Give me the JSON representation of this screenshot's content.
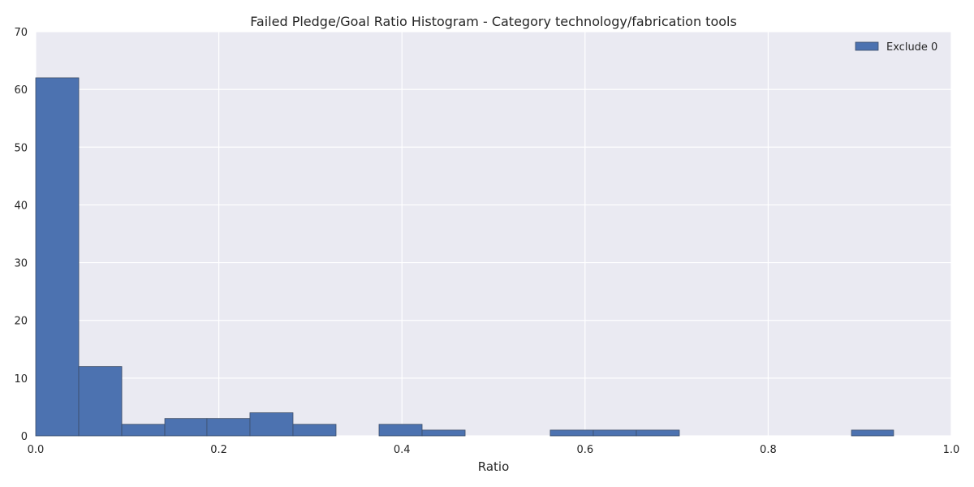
{
  "chart_data": {
    "type": "bar",
    "title": "Failed Pledge/Goal Ratio Histogram - Category technology/fabrication tools",
    "xlabel": "Ratio",
    "ylabel": "",
    "xlim": [
      0.0,
      1.0
    ],
    "ylim": [
      0,
      70
    ],
    "xticks": [
      0.0,
      0.2,
      0.4,
      0.6,
      0.8,
      1.0
    ],
    "xtick_labels": [
      "0.0",
      "0.2",
      "0.4",
      "0.6",
      "0.8",
      "1.0"
    ],
    "yticks": [
      0,
      10,
      20,
      30,
      40,
      50,
      60,
      70
    ],
    "ytick_labels": [
      "0",
      "10",
      "20",
      "30",
      "40",
      "50",
      "60",
      "70"
    ],
    "grid": true,
    "legend_position": "top-right",
    "series": [
      {
        "name": "Exclude 0",
        "color": "#4c72b0",
        "bins": [
          {
            "start": 0.0,
            "end": 0.047,
            "count": 62
          },
          {
            "start": 0.047,
            "end": 0.094,
            "count": 12
          },
          {
            "start": 0.094,
            "end": 0.141,
            "count": 2
          },
          {
            "start": 0.141,
            "end": 0.187,
            "count": 3
          },
          {
            "start": 0.187,
            "end": 0.234,
            "count": 3
          },
          {
            "start": 0.234,
            "end": 0.281,
            "count": 4
          },
          {
            "start": 0.281,
            "end": 0.328,
            "count": 2
          },
          {
            "start": 0.328,
            "end": 0.375,
            "count": 0
          },
          {
            "start": 0.375,
            "end": 0.422,
            "count": 2
          },
          {
            "start": 0.422,
            "end": 0.469,
            "count": 1
          },
          {
            "start": 0.469,
            "end": 0.516,
            "count": 0
          },
          {
            "start": 0.516,
            "end": 0.562,
            "count": 0
          },
          {
            "start": 0.562,
            "end": 0.609,
            "count": 1
          },
          {
            "start": 0.609,
            "end": 0.656,
            "count": 1
          },
          {
            "start": 0.656,
            "end": 0.703,
            "count": 1
          },
          {
            "start": 0.703,
            "end": 0.75,
            "count": 0
          },
          {
            "start": 0.75,
            "end": 0.797,
            "count": 0
          },
          {
            "start": 0.797,
            "end": 0.844,
            "count": 0
          },
          {
            "start": 0.844,
            "end": 0.891,
            "count": 0
          },
          {
            "start": 0.891,
            "end": 0.937,
            "count": 1
          }
        ]
      }
    ],
    "colors": {
      "plot_background": "#eaeaf2",
      "grid": "#ffffff",
      "bar_edge": "#3b4d68"
    }
  }
}
